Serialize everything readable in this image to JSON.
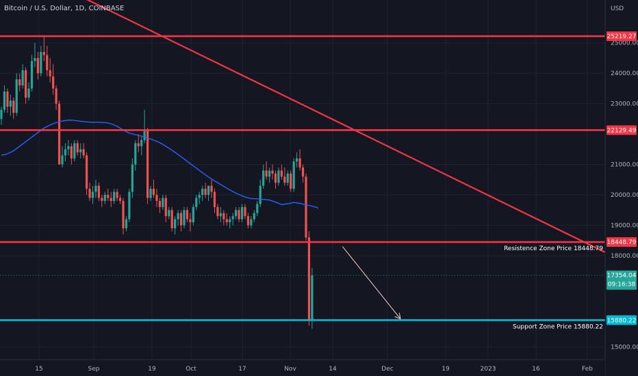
{
  "header": {
    "title": "Bitcoin / U.S. Dollar, 1D, COINBASE",
    "currency": "USD"
  },
  "colors": {
    "background": "#141722",
    "grid": "#1f2330",
    "up": "#26a69a",
    "down": "#ef5350",
    "level": "#f23645",
    "support": "#00bcd4",
    "ma": "#2962ff",
    "arrow": "#f5d0c5"
  },
  "chart_data": {
    "type": "candlestick",
    "symbol": "Bitcoin / U.S. Dollar",
    "timeframe": "1D",
    "exchange": "COINBASE",
    "y_axis": {
      "ticks": [
        "25000.00",
        "24000.00",
        "23000.00",
        "21000.00",
        "20000.00",
        "19000.00",
        "18000.00",
        "15000.00"
      ],
      "tick_values": [
        25000,
        24000,
        23000,
        21000,
        20000,
        19000,
        18000,
        15000
      ]
    },
    "x_axis": {
      "labels": [
        "15",
        "Sep",
        "19",
        "Oct",
        "17",
        "Nov",
        "14",
        "Dec",
        "19",
        "2023",
        "16",
        "Feb"
      ]
    },
    "levels": [
      {
        "price": 25219.27,
        "label": "25219.27",
        "color": "#f23645"
      },
      {
        "price": 22129.49,
        "label": "22129.49",
        "color": "#f23645"
      },
      {
        "price": 18448.79,
        "label": "18448.79",
        "color": "#f23645",
        "zone_label": "Resistence Zone Price 18448.79"
      },
      {
        "price": 15880.22,
        "label": "15880.22",
        "color": "#00bcd4",
        "zone_label": "Support Zone Price 15880.22"
      }
    ],
    "current_price": {
      "price": 17354.04,
      "label": "17354.04",
      "countdown": "09:16:38"
    },
    "candles": [
      [
        22500,
        22900,
        22300,
        22800
      ],
      [
        22800,
        23600,
        22700,
        23400
      ],
      [
        23400,
        23500,
        22700,
        22900
      ],
      [
        22900,
        23300,
        22600,
        23100
      ],
      [
        23100,
        23200,
        22500,
        22700
      ],
      [
        22700,
        24000,
        22600,
        23800
      ],
      [
        23800,
        24000,
        23400,
        23600
      ],
      [
        23600,
        24300,
        23500,
        24100
      ],
      [
        24100,
        24200,
        23000,
        23200
      ],
      [
        23200,
        23700,
        23100,
        23500
      ],
      [
        23500,
        24600,
        23400,
        24400
      ],
      [
        24400,
        25000,
        24200,
        24500
      ],
      [
        24500,
        24700,
        23800,
        24000
      ],
      [
        24000,
        24900,
        23900,
        24700
      ],
      [
        24700,
        25200,
        24400,
        24600
      ],
      [
        24600,
        24900,
        23900,
        24100
      ],
      [
        24100,
        24500,
        23700,
        23900
      ],
      [
        23900,
        24300,
        23300,
        23500
      ],
      [
        23500,
        23600,
        22800,
        23000
      ],
      [
        23000,
        23100,
        21000,
        21000
      ],
      [
        21000,
        21600,
        20900,
        21300
      ],
      [
        21300,
        21700,
        21100,
        21500
      ],
      [
        21500,
        21800,
        21300,
        21600
      ],
      [
        21600,
        21700,
        21000,
        21200
      ],
      [
        21200,
        21800,
        21100,
        21700
      ],
      [
        21700,
        21800,
        21300,
        21400
      ],
      [
        21400,
        21700,
        21200,
        21500
      ],
      [
        21500,
        21700,
        21200,
        21300
      ],
      [
        21300,
        21400,
        20000,
        20200
      ],
      [
        20200,
        20400,
        19800,
        19900
      ],
      [
        19900,
        20300,
        19700,
        20100
      ],
      [
        20100,
        20500,
        19900,
        20300
      ],
      [
        20300,
        20400,
        19800,
        19900
      ],
      [
        19900,
        20000,
        19600,
        19800
      ],
      [
        19800,
        20100,
        19700,
        20000
      ],
      [
        20000,
        20200,
        19800,
        19900
      ],
      [
        19900,
        20100,
        19600,
        19800
      ],
      [
        19800,
        20200,
        19700,
        20100
      ],
      [
        20100,
        20200,
        19800,
        19900
      ],
      [
        19900,
        20000,
        19700,
        19800
      ],
      [
        19800,
        19900,
        18700,
        18900
      ],
      [
        18900,
        19300,
        18800,
        19200
      ],
      [
        19200,
        20200,
        19100,
        20100
      ],
      [
        20100,
        21200,
        19900,
        21000
      ],
      [
        21000,
        21800,
        20800,
        21700
      ],
      [
        21700,
        22000,
        21400,
        21600
      ],
      [
        21600,
        21900,
        21300,
        21800
      ],
      [
        21800,
        22800,
        21700,
        22100
      ],
      [
        22100,
        22200,
        19700,
        19900
      ],
      [
        19900,
        20300,
        19800,
        20200
      ],
      [
        20200,
        20500,
        19900,
        20000
      ],
      [
        20000,
        20200,
        19600,
        19800
      ],
      [
        19800,
        19900,
        19400,
        19600
      ],
      [
        19600,
        20000,
        19500,
        19900
      ],
      [
        19900,
        20000,
        19100,
        19300
      ],
      [
        19300,
        19600,
        19200,
        19500
      ],
      [
        19500,
        19600,
        18800,
        18900
      ],
      [
        18900,
        19300,
        18700,
        19200
      ],
      [
        19200,
        19500,
        19000,
        19400
      ],
      [
        19400,
        19500,
        18800,
        19000
      ],
      [
        19000,
        19600,
        18900,
        19500
      ],
      [
        19500,
        19600,
        19100,
        19200
      ],
      [
        19200,
        19400,
        18800,
        19100
      ],
      [
        19100,
        19700,
        19000,
        19600
      ],
      [
        19600,
        20000,
        19500,
        19900
      ],
      [
        19900,
        20100,
        19700,
        20000
      ],
      [
        20000,
        20300,
        19800,
        20200
      ],
      [
        20200,
        20400,
        19900,
        20000
      ],
      [
        20000,
        20300,
        19800,
        20300
      ],
      [
        20300,
        20500,
        19900,
        20100
      ],
      [
        20100,
        20200,
        19400,
        19600
      ],
      [
        19600,
        19700,
        19200,
        19300
      ],
      [
        19300,
        19600,
        19100,
        19400
      ],
      [
        19400,
        19500,
        19000,
        19200
      ],
      [
        19200,
        19400,
        19000,
        19100
      ],
      [
        19100,
        19300,
        18900,
        19200
      ],
      [
        19200,
        19400,
        19000,
        19300
      ],
      [
        19300,
        19600,
        19200,
        19500
      ],
      [
        19500,
        19600,
        19100,
        19200
      ],
      [
        19200,
        19700,
        19100,
        19600
      ],
      [
        19600,
        19700,
        19200,
        19300
      ],
      [
        19300,
        19400,
        18900,
        19000
      ],
      [
        19000,
        19300,
        18900,
        19200
      ],
      [
        19200,
        19500,
        19100,
        19400
      ],
      [
        19400,
        19800,
        19300,
        19700
      ],
      [
        19700,
        20500,
        19600,
        20300
      ],
      [
        20300,
        21000,
        20200,
        20800
      ],
      [
        20800,
        21100,
        20500,
        20600
      ],
      [
        20600,
        20900,
        20400,
        20800
      ],
      [
        20800,
        21000,
        20500,
        20700
      ],
      [
        20700,
        20800,
        20200,
        20400
      ],
      [
        20400,
        20900,
        20300,
        20800
      ],
      [
        20800,
        21000,
        20500,
        20600
      ],
      [
        20600,
        20900,
        20300,
        20400
      ],
      [
        20400,
        20800,
        20300,
        20700
      ],
      [
        20700,
        20800,
        20100,
        20200
      ],
      [
        20200,
        21200,
        20100,
        21100
      ],
      [
        21100,
        21400,
        20900,
        21200
      ],
      [
        21200,
        21500,
        20800,
        20900
      ],
      [
        20900,
        21000,
        20400,
        20600
      ],
      [
        20600,
        20700,
        18500,
        18600
      ],
      [
        18600,
        18800,
        15700,
        15900
      ],
      [
        15900,
        17600,
        15600,
        17354
      ]
    ],
    "moving_average": [
      [
        0,
        21300
      ],
      [
        2,
        21350
      ],
      [
        4,
        21450
      ],
      [
        6,
        21600
      ],
      [
        8,
        21750
      ],
      [
        10,
        21900
      ],
      [
        12,
        22050
      ],
      [
        14,
        22200
      ],
      [
        16,
        22300
      ],
      [
        18,
        22380
      ],
      [
        20,
        22430
      ],
      [
        22,
        22460
      ],
      [
        24,
        22450
      ],
      [
        26,
        22420
      ],
      [
        28,
        22400
      ],
      [
        30,
        22390
      ],
      [
        32,
        22390
      ],
      [
        34,
        22380
      ],
      [
        36,
        22340
      ],
      [
        38,
        22260
      ],
      [
        40,
        22130
      ],
      [
        42,
        22030
      ],
      [
        44,
        21980
      ],
      [
        46,
        21930
      ],
      [
        48,
        21870
      ],
      [
        50,
        21800
      ],
      [
        52,
        21720
      ],
      [
        54,
        21600
      ],
      [
        56,
        21470
      ],
      [
        58,
        21330
      ],
      [
        60,
        21180
      ],
      [
        62,
        21030
      ],
      [
        64,
        20880
      ],
      [
        66,
        20730
      ],
      [
        68,
        20590
      ],
      [
        70,
        20460
      ],
      [
        72,
        20340
      ],
      [
        74,
        20220
      ],
      [
        76,
        20110
      ],
      [
        78,
        20010
      ],
      [
        80,
        19930
      ],
      [
        82,
        19880
      ],
      [
        84,
        19870
      ],
      [
        86,
        19850
      ],
      [
        88,
        19830
      ],
      [
        90,
        19760
      ],
      [
        92,
        19680
      ],
      [
        94,
        19710
      ],
      [
        96,
        19750
      ],
      [
        98,
        19720
      ],
      [
        100,
        19670
      ],
      [
        102,
        19630
      ],
      [
        104,
        19570
      ]
    ],
    "trendline": {
      "from": [
        0,
        27800
      ],
      "to": [
        270,
        14600
      ]
    },
    "arrow": {
      "from": [
        112,
        18300
      ],
      "to": [
        131,
        15920
      ]
    }
  }
}
